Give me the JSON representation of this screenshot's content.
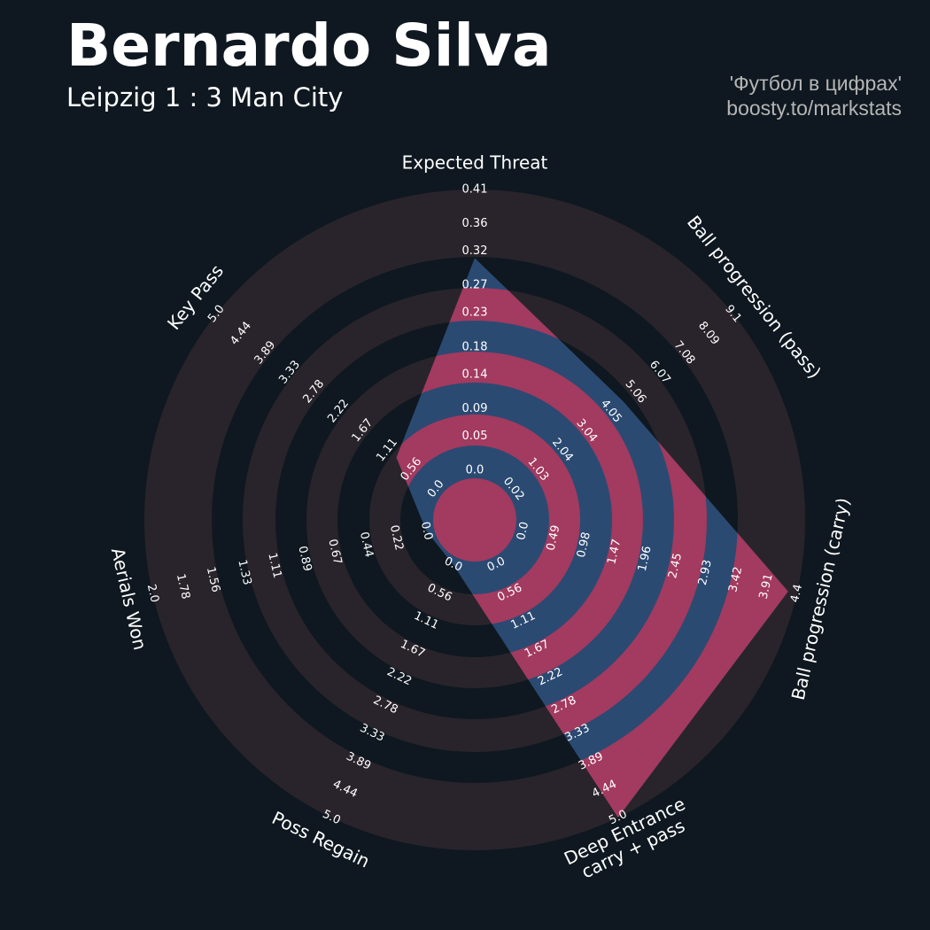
{
  "chart_data": {
    "type": "radar",
    "title": "Bernardo Silva",
    "subtitle": "Leipzig 1 : 3 Man City",
    "credits": [
      "'Футбол в цифрах'",
      "boosty.to/markstats"
    ],
    "background": "#0f1820",
    "ring_color": "#29242b",
    "color": "#2b4a72",
    "highlight_color": "#a33a5f",
    "axes": [
      {
        "name": "Expected Threat",
        "ticks": [
          {
            "value": 0,
            "label": "0.0"
          },
          0.05,
          0.09,
          0.14,
          0.18,
          0.23,
          0.27,
          0.32,
          0.36,
          0.41
        ]
      },
      {
        "name": "Ball progression (pass)",
        "ticks": [
          0.02,
          1.03,
          2.04,
          3.04,
          4.05,
          5.06,
          6.07,
          7.08,
          8.09,
          9.1
        ]
      },
      {
        "name": "Ball progression (carry)",
        "ticks": [
          {
            "value": 0,
            "label": "0.0"
          },
          0.49,
          0.98,
          1.47,
          1.96,
          2.45,
          2.93,
          3.42,
          3.91,
          4.4
        ]
      },
      {
        "name": "Deep Entrance\ncarry + pass",
        "ticks": [
          {
            "value": 0,
            "label": "0.0"
          },
          0.56,
          1.11,
          1.67,
          2.22,
          2.78,
          3.33,
          3.89,
          4.44,
          {
            "value": 5,
            "label": "5.0"
          }
        ]
      },
      {
        "name": "Poss Regain",
        "ticks": [
          {
            "value": 0,
            "label": "0.0"
          },
          0.56,
          1.11,
          1.67,
          2.22,
          2.78,
          3.33,
          3.89,
          4.44,
          {
            "value": 5,
            "label": "5.0"
          }
        ]
      },
      {
        "name": "Aerials Won",
        "ticks": [
          {
            "value": 0,
            "label": "0.0"
          },
          0.22,
          0.44,
          0.67,
          0.89,
          1.11,
          1.33,
          1.56,
          1.78,
          {
            "value": 2,
            "label": "2.0"
          }
        ]
      },
      {
        "name": "Key Pass",
        "ticks": [
          {
            "value": 0,
            "label": "0.0"
          },
          0.56,
          1.11,
          1.67,
          2.22,
          2.78,
          3.33,
          3.89,
          4.44,
          {
            "value": 5,
            "label": "5.0"
          }
        ]
      }
    ],
    "values": [
      0.31,
      4.56,
      4.26,
      5.0,
      0,
      0,
      0.9
    ]
  }
}
